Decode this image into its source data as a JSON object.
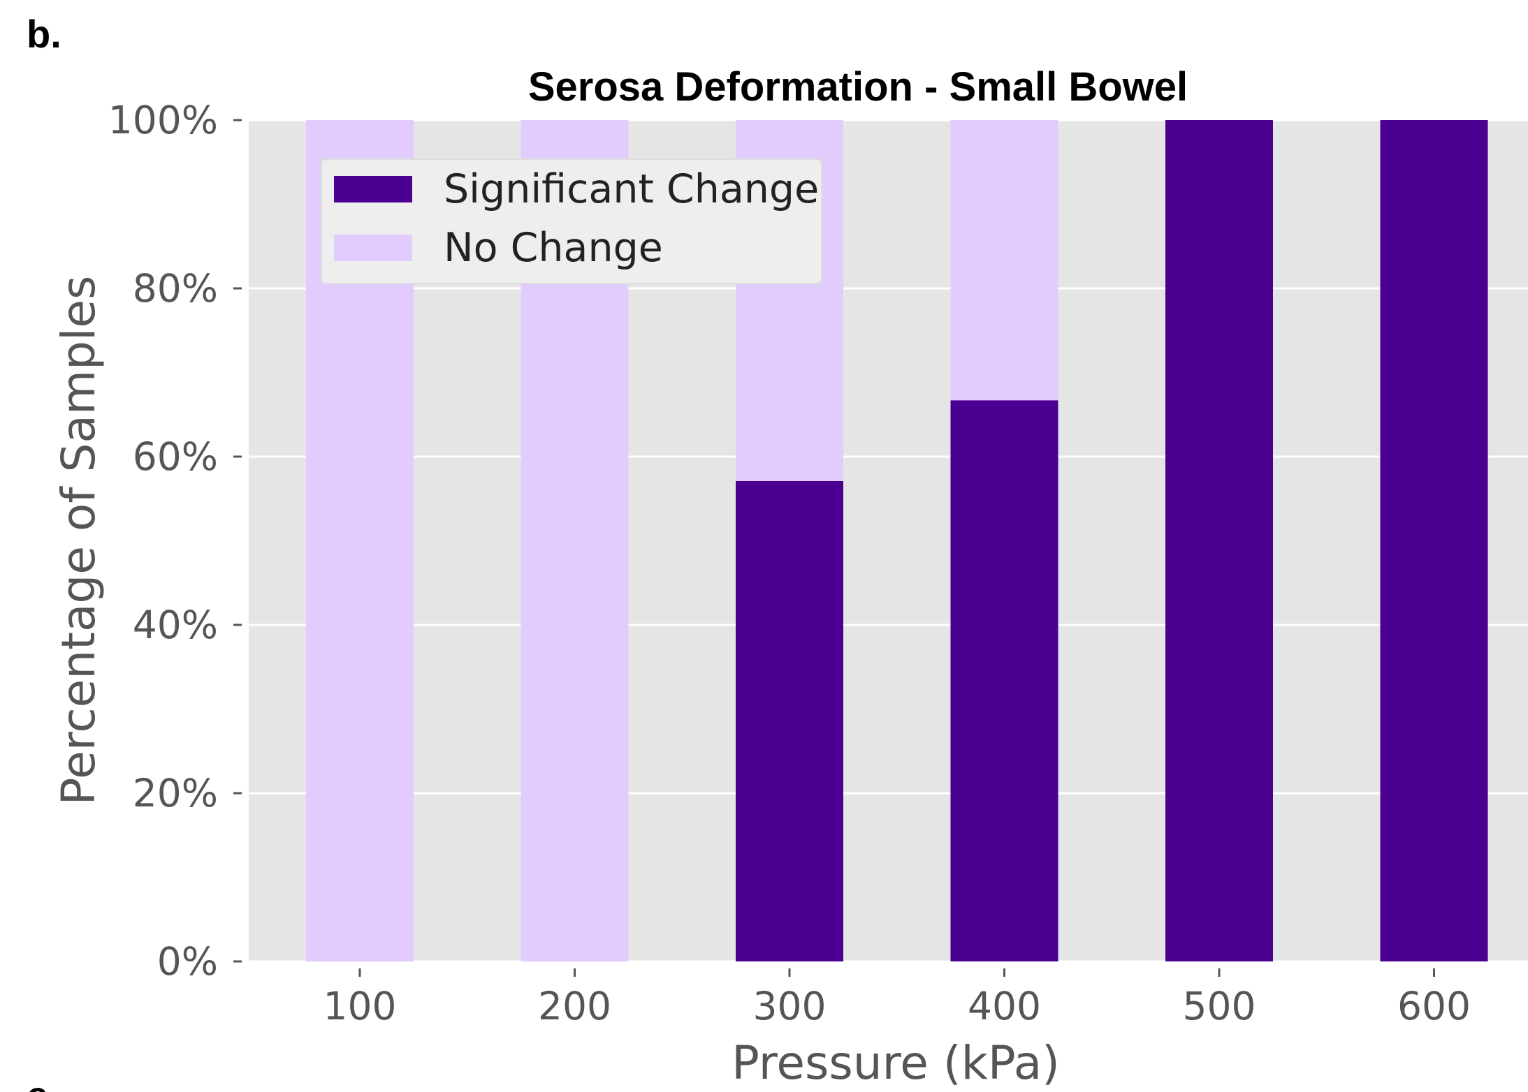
{
  "panel_label": "b.",
  "next_panel_label": "e",
  "chart_data": {
    "type": "bar",
    "stacked": true,
    "title": "Serosa Deformation - Small Bowel",
    "xlabel": "Pressure (kPa)",
    "ylabel": "Percentage of Samples",
    "categories": [
      "100",
      "200",
      "300",
      "400",
      "500",
      "600"
    ],
    "series": [
      {
        "name": "Significant Change",
        "color": "#4b0092",
        "values": [
          0,
          0,
          57.1,
          66.7,
          100,
          100
        ]
      },
      {
        "name": "No Change",
        "color": "#e2ccfd",
        "values": [
          100,
          100,
          42.9,
          33.3,
          0,
          0
        ]
      }
    ],
    "ylim": [
      0,
      100
    ],
    "yticks": [
      "0%",
      "20%",
      "40%",
      "60%",
      "80%",
      "100%"
    ],
    "grid": true,
    "background": "#e5e5e5",
    "legend_position": "top-left"
  }
}
